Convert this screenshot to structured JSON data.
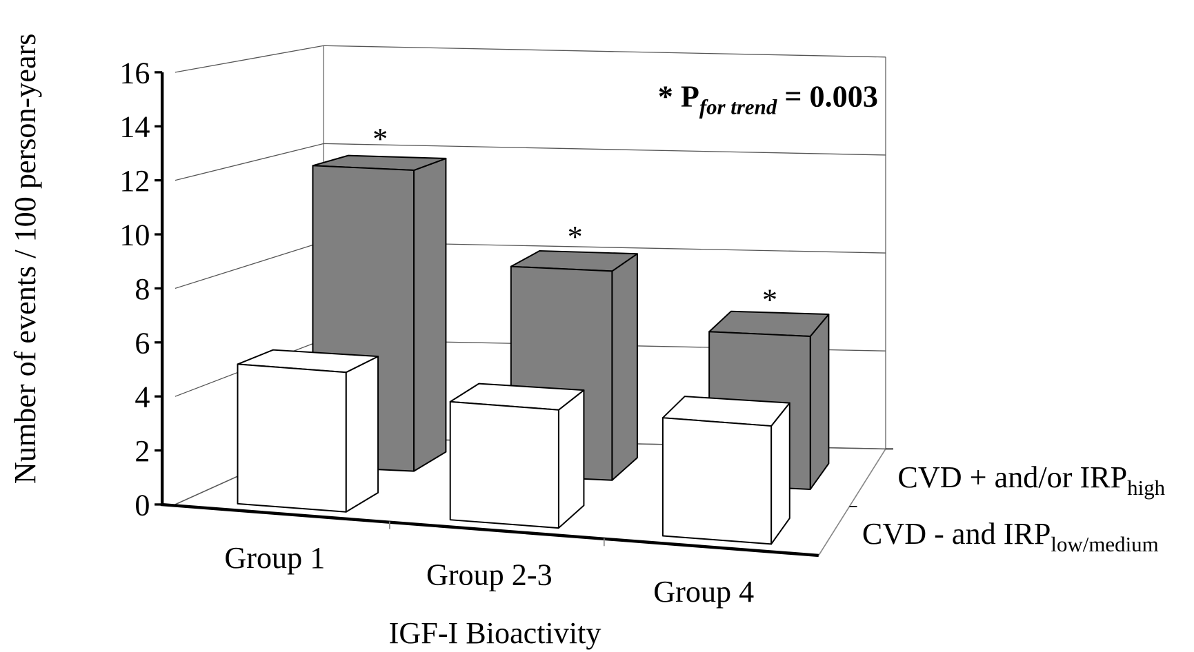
{
  "chart_data": {
    "type": "bar3d",
    "y_label": "Number of events / 100 person-years",
    "x_label": "IGF-I Bioactivity",
    "annotation": {
      "prefix": "* P",
      "sub": "for trend",
      "suffix": "= 0.003"
    },
    "categories": [
      "Group 1",
      "Group 2-3",
      "Group 4"
    ],
    "series": [
      {
        "name": "CVD - and IRP",
        "name_sub": "low/medium",
        "color": "#ffffff",
        "values": [
          5.2,
          4.4,
          4.4
        ]
      },
      {
        "name": "CVD + and/or IRP",
        "name_sub": "high",
        "color": "#808080",
        "values": [
          11.8,
          8.2,
          6.0
        ],
        "markers": [
          "*",
          "*",
          "*"
        ]
      }
    ],
    "ylim": [
      0,
      16
    ],
    "yticks": [
      0,
      2,
      4,
      6,
      8,
      10,
      12,
      14,
      16
    ],
    "grid_values": [
      0,
      4,
      8,
      12,
      16
    ]
  }
}
